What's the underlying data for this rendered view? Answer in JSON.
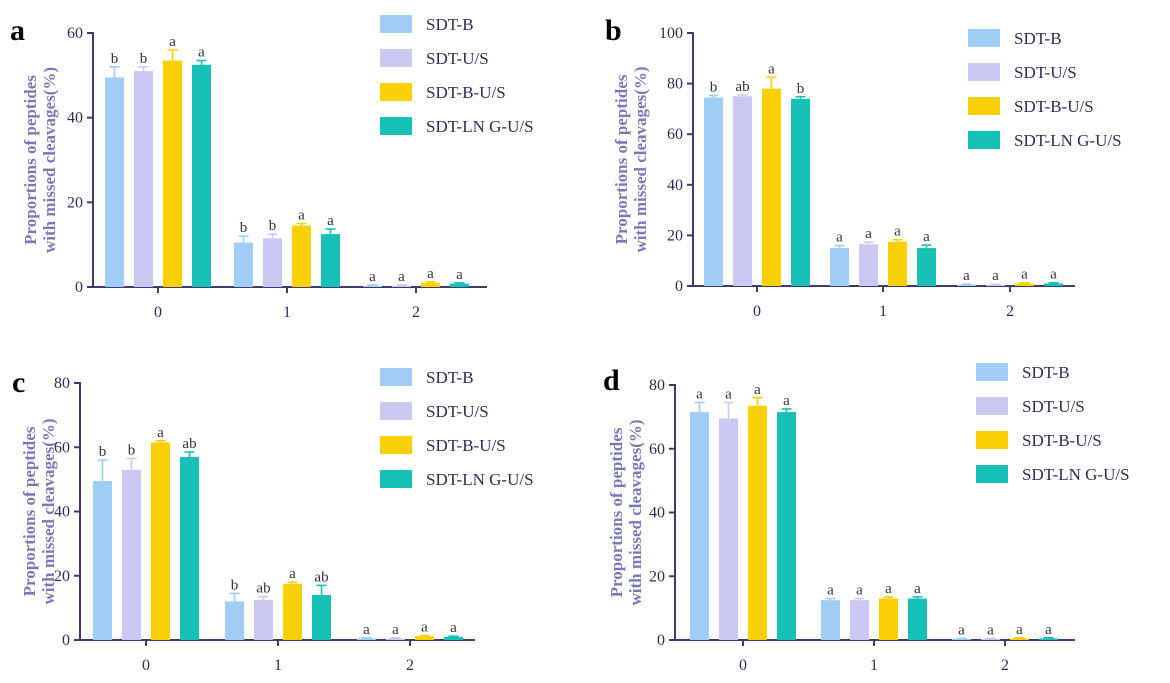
{
  "series_names": [
    "SDT-B",
    "SDT-U/S",
    "SDT-B-U/S",
    "SDT-LN G-U/S"
  ],
  "series_colors": [
    "#9fcdf6",
    "#ccc8f4",
    "#f9cf05",
    "#17c1b8"
  ],
  "chart_data": [
    {
      "type": "bar",
      "panel": "a",
      "ylabel_line1": "Proportions of peptides",
      "ylabel_line2": "with missed cleavages(%)",
      "categories": [
        "0",
        "1",
        "2"
      ],
      "ylim": [
        0,
        60
      ],
      "yticks": [
        "0",
        "20",
        "40",
        "60"
      ],
      "series": [
        {
          "name": "SDT-B",
          "values": [
            49.5,
            10.5,
            0.3
          ],
          "errors": [
            2.5,
            1.5,
            0.2
          ],
          "letters": [
            "b",
            "b",
            "a"
          ]
        },
        {
          "name": "SDT-U/S",
          "values": [
            51,
            11.5,
            0.3
          ],
          "errors": [
            1.0,
            1.0,
            0.2
          ],
          "letters": [
            "b",
            "b",
            "a"
          ]
        },
        {
          "name": "SDT-B-U/S",
          "values": [
            53.5,
            14.5,
            1.0
          ],
          "errors": [
            2.5,
            0.5,
            0.2
          ],
          "letters": [
            "a",
            "a",
            "a"
          ]
        },
        {
          "name": "SDT-LN G-U/S",
          "values": [
            52.5,
            12.5,
            0.8
          ],
          "errors": [
            1.0,
            1.2,
            0.2
          ],
          "letters": [
            "a",
            "a",
            "a"
          ]
        }
      ]
    },
    {
      "type": "bar",
      "panel": "b",
      "ylabel_line1": "Proportions of peptides",
      "ylabel_line2": "with missed cleavages(%)",
      "categories": [
        "0",
        "1",
        "2"
      ],
      "ylim": [
        0,
        100
      ],
      "yticks": [
        "0",
        "20",
        "40",
        "60",
        "80",
        "100"
      ],
      "series": [
        {
          "name": "SDT-B",
          "values": [
            74.5,
            15,
            0.5
          ],
          "errors": [
            0.8,
            1.0,
            0.2
          ],
          "letters": [
            "b",
            "a",
            "a"
          ]
        },
        {
          "name": "SDT-U/S",
          "values": [
            75,
            16.5,
            0.5
          ],
          "errors": [
            0.5,
            0.8,
            0.2
          ],
          "letters": [
            "ab",
            "a",
            "a"
          ]
        },
        {
          "name": "SDT-B-U/S",
          "values": [
            78,
            17.5,
            1.0
          ],
          "errors": [
            4.5,
            0.8,
            0.3
          ],
          "letters": [
            "a",
            "a",
            "a"
          ]
        },
        {
          "name": "SDT-LN G-U/S",
          "values": [
            74,
            15,
            1.0
          ],
          "errors": [
            0.8,
            1.2,
            0.3
          ],
          "letters": [
            "b",
            "a",
            "a"
          ]
        }
      ]
    },
    {
      "type": "bar",
      "panel": "c",
      "ylabel_line1": "Proportions of peptides",
      "ylabel_line2": "with missed cleavages(%)",
      "categories": [
        "0",
        "1",
        "2"
      ],
      "ylim": [
        0,
        80
      ],
      "yticks": [
        "0",
        "20",
        "40",
        "60",
        "80"
      ],
      "series": [
        {
          "name": "SDT-B",
          "values": [
            49.5,
            12,
            0.5
          ],
          "errors": [
            6.5,
            2.5,
            0.2
          ],
          "letters": [
            "b",
            "b",
            "a"
          ]
        },
        {
          "name": "SDT-U/S",
          "values": [
            53,
            12.5,
            0.5
          ],
          "errors": [
            3.5,
            1.0,
            0.2
          ],
          "letters": [
            "b",
            "ab",
            "a"
          ]
        },
        {
          "name": "SDT-B-U/S",
          "values": [
            61.5,
            17.5,
            1.2
          ],
          "errors": [
            0.5,
            0.5,
            0.2
          ],
          "letters": [
            "a",
            "a",
            "a"
          ]
        },
        {
          "name": "SDT-LN G-U/S",
          "values": [
            57,
            14,
            1.0
          ],
          "errors": [
            1.5,
            3.0,
            0.2
          ],
          "letters": [
            "ab",
            "ab",
            "a"
          ]
        }
      ]
    },
    {
      "type": "bar",
      "panel": "d",
      "ylabel_line1": "Proportions of peptides",
      "ylabel_line2": "with missed cleavages(%)",
      "categories": [
        "0",
        "1",
        "2"
      ],
      "ylim": [
        0,
        80
      ],
      "yticks": [
        "0",
        "20",
        "40",
        "60",
        "80"
      ],
      "series": [
        {
          "name": "SDT-B",
          "values": [
            71.5,
            12.5,
            0.3
          ],
          "errors": [
            3.0,
            0.5,
            0.2
          ],
          "letters": [
            "a",
            "a",
            "a"
          ]
        },
        {
          "name": "SDT-U/S",
          "values": [
            69.5,
            12.5,
            0.3
          ],
          "errors": [
            5.0,
            0.5,
            0.2
          ],
          "letters": [
            "a",
            "a",
            "a"
          ]
        },
        {
          "name": "SDT-B-U/S",
          "values": [
            73.5,
            13,
            0.5
          ],
          "errors": [
            2.5,
            0.5,
            0.2
          ],
          "letters": [
            "a",
            "a",
            "a"
          ]
        },
        {
          "name": "SDT-LN G-U/S",
          "values": [
            71.5,
            13,
            0.5
          ],
          "errors": [
            1.0,
            0.5,
            0.2
          ],
          "letters": [
            "a",
            "a",
            "a"
          ]
        }
      ]
    }
  ]
}
